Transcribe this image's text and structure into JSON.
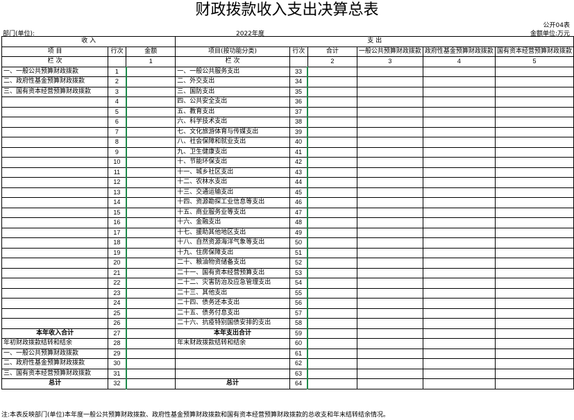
{
  "title": "财政拨款收入支出决算总表",
  "form_code": "公开04表",
  "unit_label": "部门(单位):",
  "year_label": "2022年度",
  "currency_label": "金额单位:万元",
  "headers": {
    "income": "收    入",
    "expense": "支    出",
    "item": "项    目",
    "line_no": "行次",
    "amount": "金额",
    "item_func": "项目(按功能分类)",
    "total": "合计",
    "gen_budget": "一般公共预算财政拨款",
    "fund_budget": "政府性基金预算财政拨款",
    "capital_budget": "国有资本经营预算财政拨款",
    "col_label": "栏    次",
    "cols": [
      "1",
      "2",
      "3",
      "4",
      "5"
    ]
  },
  "rows": [
    {
      "left_item": "一、一般公共预算财政拨款",
      "left_no": "1",
      "right_item": "一、一般公共服务支出",
      "right_no": "33"
    },
    {
      "left_item": "二、政府性基金预算财政拨款",
      "left_no": "2",
      "right_item": "二、外交支出",
      "right_no": "34"
    },
    {
      "left_item": "三、国有资本经营预算财政拨款",
      "left_no": "3",
      "right_item": "三、国防支出",
      "right_no": "35"
    },
    {
      "left_item": "",
      "left_no": "4",
      "right_item": "四、公共安全支出",
      "right_no": "36"
    },
    {
      "left_item": "",
      "left_no": "5",
      "right_item": "五、教育支出",
      "right_no": "37"
    },
    {
      "left_item": "",
      "left_no": "6",
      "right_item": "六、科学技术支出",
      "right_no": "38"
    },
    {
      "left_item": "",
      "left_no": "7",
      "right_item": "七、文化旅游体育与传媒支出",
      "right_no": "39"
    },
    {
      "left_item": "",
      "left_no": "8",
      "right_item": "八、社会保障和就业支出",
      "right_no": "40"
    },
    {
      "left_item": "",
      "left_no": "9",
      "right_item": "九、卫生健康支出",
      "right_no": "41"
    },
    {
      "left_item": "",
      "left_no": "10",
      "right_item": "十、节能环保支出",
      "right_no": "42"
    },
    {
      "left_item": "",
      "left_no": "11",
      "right_item": "十一、城乡社区支出",
      "right_no": "43"
    },
    {
      "left_item": "",
      "left_no": "12",
      "right_item": "十二、农林水支出",
      "right_no": "44"
    },
    {
      "left_item": "",
      "left_no": "13",
      "right_item": "十三、交通运输支出",
      "right_no": "45"
    },
    {
      "left_item": "",
      "left_no": "14",
      "right_item": "十四、资源勘探工业信息等支出",
      "right_no": "46"
    },
    {
      "left_item": "",
      "left_no": "15",
      "right_item": "十五、商业服务业等支出",
      "right_no": "47"
    },
    {
      "left_item": "",
      "left_no": "16",
      "right_item": "十六、金融支出",
      "right_no": "48"
    },
    {
      "left_item": "",
      "left_no": "17",
      "right_item": "十七、援助其他地区支出",
      "right_no": "49"
    },
    {
      "left_item": "",
      "left_no": "18",
      "right_item": "十八、自然资源海洋气象等支出",
      "right_no": "50"
    },
    {
      "left_item": "",
      "left_no": "19",
      "right_item": "十九、住房保障支出",
      "right_no": "51"
    },
    {
      "left_item": "",
      "left_no": "20",
      "right_item": "二十、粮油物资储备支出",
      "right_no": "52"
    },
    {
      "left_item": "",
      "left_no": "21",
      "right_item": "二十一、国有资本经营预算支出",
      "right_no": "53"
    },
    {
      "left_item": "",
      "left_no": "22",
      "right_item": "二十二、灾害防治及应急管理支出",
      "right_no": "54"
    },
    {
      "left_item": "",
      "left_no": "23",
      "right_item": "二十三、其他支出",
      "right_no": "55"
    },
    {
      "left_item": "",
      "left_no": "24",
      "right_item": "二十四、债务还本支出",
      "right_no": "56"
    },
    {
      "left_item": "",
      "left_no": "25",
      "right_item": "二十五、债务付息支出",
      "right_no": "57"
    },
    {
      "left_item": "",
      "left_no": "26",
      "right_item": "二十六、抗疫特别国债安排的支出",
      "right_no": "58"
    },
    {
      "left_item": "本年收入合计",
      "left_no": "27",
      "right_item": "本年支出合计",
      "right_no": "59",
      "bold": true
    },
    {
      "left_item": "年初财政拨款结转和结余",
      "left_no": "28",
      "right_item": "年末财政拨款结转和结余",
      "right_no": "60"
    },
    {
      "left_item": "一、一般公共预算财政拨款",
      "left_no": "29",
      "right_item": "",
      "right_no": "61"
    },
    {
      "left_item": "二、政府性基金预算财政拨款",
      "left_no": "30",
      "right_item": "",
      "right_no": "62"
    },
    {
      "left_item": "三、国有资本经营预算财政拨款",
      "left_no": "31",
      "right_item": "",
      "right_no": "63"
    },
    {
      "left_item": "总计",
      "left_no": "32",
      "right_item": "总计",
      "right_no": "64",
      "bold": true
    }
  ],
  "note": "注:本表反映部门(单位)本年度一般公共预算财政拨款、政府性基金预算财政拨款和国有资本经营预算财政拨款的总收支和年末结转结余情况。"
}
